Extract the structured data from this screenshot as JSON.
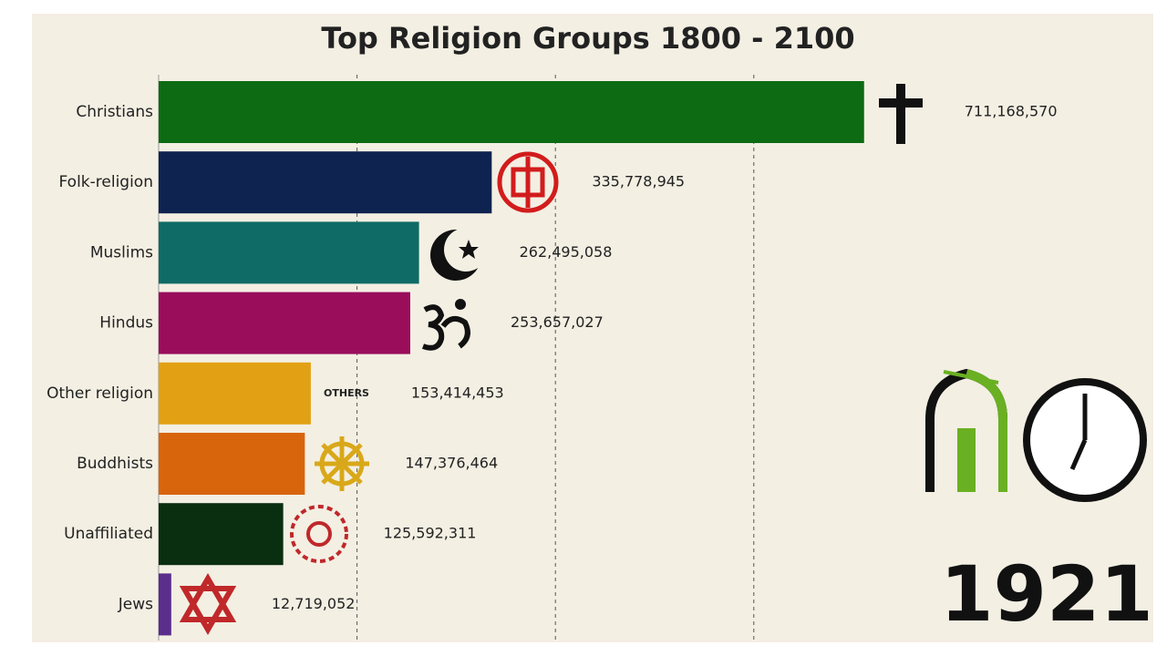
{
  "chart_data": {
    "type": "bar",
    "orientation": "horizontal",
    "title": "Top Religion Groups 1800 - 2100",
    "categories": [
      "Christians",
      "Folk-religion",
      "Muslims",
      "Hindus",
      "Other religion",
      "Buddhists",
      "Unaffiliated",
      "Jews"
    ],
    "values": [
      711168570,
      335778945,
      262495058,
      253657027,
      153414453,
      147376464,
      125592311,
      12719052
    ],
    "value_labels": [
      "711,168,570",
      "335,778,945",
      "262,495,058",
      "253,657,027",
      "153,414,453",
      "147,376,464",
      "125,592,311",
      "12,719,052"
    ],
    "colors": [
      "#0d6b14",
      "#0f2350",
      "#0f6b66",
      "#9a0d5b",
      "#e2a114",
      "#d8650b",
      "#0a2e10",
      "#5b2d8c"
    ],
    "xlim": [
      0,
      1000000000
    ],
    "xticks": [
      200000000,
      400000000,
      600000000
    ],
    "grid": true,
    "icon_text": "OTHERS",
    "year": "1921"
  }
}
